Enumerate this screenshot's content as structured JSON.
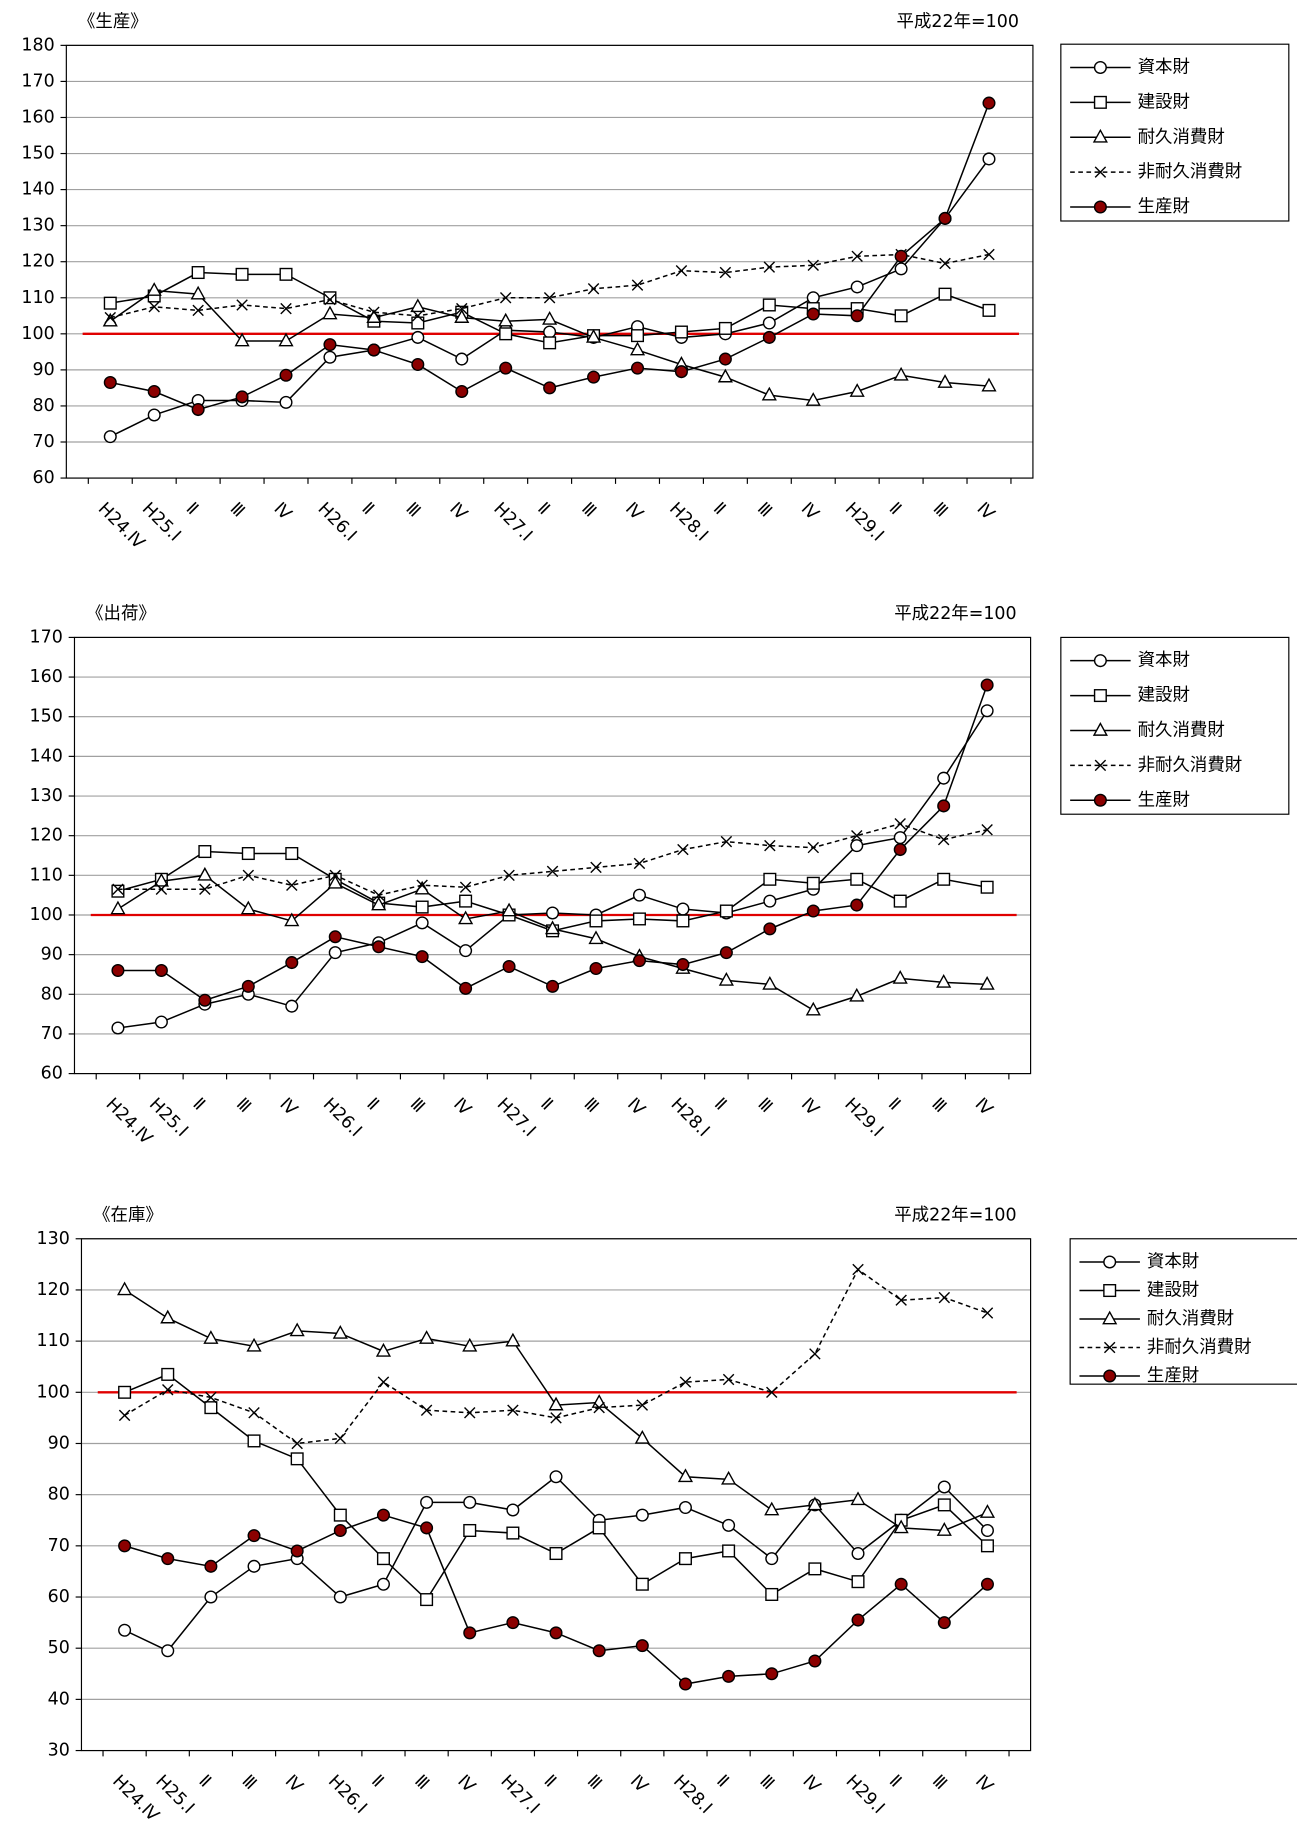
{
  "chart_data": [
    {
      "type": "line",
      "title": "《生産》",
      "subtitle": "平成22年=100",
      "categories": [
        "H24.Ⅳ",
        "H25.Ⅰ",
        "Ⅱ",
        "Ⅲ",
        "Ⅳ",
        "H26.Ⅰ",
        "Ⅱ",
        "Ⅲ",
        "Ⅳ",
        "H27.Ⅰ",
        "Ⅱ",
        "Ⅲ",
        "Ⅳ",
        "H28.Ⅰ",
        "Ⅱ",
        "Ⅲ",
        "Ⅳ",
        "H29.Ⅰ",
        "Ⅱ",
        "Ⅲ",
        "Ⅳ"
      ],
      "ylim": [
        60,
        180
      ],
      "yticks": [
        60,
        70,
        80,
        90,
        100,
        110,
        120,
        130,
        140,
        150,
        160,
        170,
        180
      ],
      "grid": true,
      "reference_line": 100,
      "reference_color": "#e00000",
      "series": [
        {
          "name": "資本財",
          "marker": "circle",
          "color": "#000000",
          "fill": "#ffffff",
          "dashed": false,
          "values": [
            71.5,
            77.5,
            81.5,
            81.5,
            81,
            93.5,
            95.5,
            99,
            93,
            101,
            100.5,
            99,
            102,
            99,
            100,
            103,
            110,
            113,
            118,
            132,
            148.5
          ]
        },
        {
          "name": "建設財",
          "marker": "square",
          "color": "#000000",
          "fill": "#ffffff",
          "dashed": false,
          "values": [
            108.5,
            110.5,
            117,
            116.5,
            116.5,
            110,
            103.5,
            103,
            106,
            100,
            97.5,
            99.5,
            99.5,
            100.5,
            101.5,
            108,
            107,
            107,
            105,
            111,
            106.5
          ]
        },
        {
          "name": "耐久消費財",
          "marker": "triangle",
          "color": "#000000",
          "fill": "#ffffff",
          "dashed": false,
          "values": [
            103.5,
            112,
            111,
            98,
            98,
            105.5,
            104.5,
            107.5,
            104.5,
            103.5,
            104,
            99,
            95.5,
            91.5,
            88,
            83,
            81.5,
            84,
            88.5,
            86.5,
            85.5
          ]
        },
        {
          "name": "非耐久消費財",
          "marker": "x",
          "color": "#000000",
          "fill": "#ffffff",
          "dashed": true,
          "values": [
            104.5,
            107.5,
            106.5,
            108,
            107,
            109.5,
            106,
            105,
            107,
            110,
            110,
            112.5,
            113.5,
            117.5,
            117,
            118.5,
            119,
            121.5,
            122,
            119.5,
            122
          ]
        },
        {
          "name": "生産財",
          "marker": "circle",
          "color": "#000000",
          "fill": "#8b0000",
          "dashed": false,
          "values": [
            86.5,
            84,
            79,
            82.5,
            88.5,
            97,
            95.5,
            91.5,
            84,
            90.5,
            85,
            88,
            90.5,
            89.5,
            93,
            99,
            105.5,
            105,
            121.5,
            132,
            164
          ]
        }
      ]
    },
    {
      "type": "line",
      "title": "《出荷》",
      "subtitle": "平成22年=100",
      "categories": [
        "H24.Ⅳ",
        "H25.Ⅰ",
        "Ⅱ",
        "Ⅲ",
        "Ⅳ",
        "H26.Ⅰ",
        "Ⅱ",
        "Ⅲ",
        "Ⅳ",
        "H27.Ⅰ",
        "Ⅱ",
        "Ⅲ",
        "Ⅳ",
        "H28.Ⅰ",
        "Ⅱ",
        "Ⅲ",
        "Ⅳ",
        "H29.Ⅰ",
        "Ⅱ",
        "Ⅲ",
        "Ⅳ"
      ],
      "ylim": [
        60,
        170
      ],
      "yticks": [
        60,
        70,
        80,
        90,
        100,
        110,
        120,
        130,
        140,
        150,
        160,
        170
      ],
      "grid": true,
      "reference_line": 100,
      "reference_color": "#e00000",
      "series": [
        {
          "name": "資本財",
          "marker": "circle",
          "color": "#000000",
          "fill": "#ffffff",
          "dashed": false,
          "values": [
            71.5,
            73,
            77.5,
            80,
            77,
            90.5,
            93,
            98,
            91,
            100,
            100.5,
            100,
            105,
            101.5,
            100.5,
            103.5,
            106.5,
            117.5,
            119.5,
            134.5,
            151.5
          ]
        },
        {
          "name": "建設財",
          "marker": "square",
          "color": "#000000",
          "fill": "#ffffff",
          "dashed": false,
          "values": [
            106,
            109,
            116,
            115.5,
            115.5,
            109,
            103,
            102,
            103.5,
            100,
            96,
            98.5,
            99,
            98.5,
            101,
            109,
            108,
            109,
            103.5,
            109,
            107
          ]
        },
        {
          "name": "耐久消費財",
          "marker": "triangle",
          "color": "#000000",
          "fill": "#ffffff",
          "dashed": false,
          "values": [
            101.5,
            108.5,
            110,
            101.5,
            98.5,
            108,
            102.5,
            106.5,
            99,
            101,
            96.5,
            94,
            89.5,
            86.5,
            83.5,
            82.5,
            76,
            79.5,
            84,
            83,
            82.5
          ]
        },
        {
          "name": "非耐久消費財",
          "marker": "x",
          "color": "#000000",
          "fill": "#ffffff",
          "dashed": true,
          "values": [
            106.5,
            106.5,
            106.5,
            110,
            107.5,
            110,
            105,
            107.5,
            107,
            110,
            111,
            112,
            113,
            116.5,
            118.5,
            117.5,
            117,
            120,
            123,
            119,
            121.5
          ]
        },
        {
          "name": "生産財",
          "marker": "circle",
          "color": "#000000",
          "fill": "#8b0000",
          "dashed": false,
          "values": [
            86,
            86,
            78.5,
            82,
            88,
            94.5,
            92,
            89.5,
            81.5,
            87,
            82,
            86.5,
            88.5,
            87.5,
            90.5,
            96.5,
            101,
            102.5,
            116.5,
            127.5,
            158
          ]
        }
      ]
    },
    {
      "type": "line",
      "title": "《在庫》",
      "subtitle": "平成22年=100",
      "categories": [
        "H24.Ⅳ",
        "H25.Ⅰ",
        "Ⅱ",
        "Ⅲ",
        "Ⅳ",
        "H26.Ⅰ",
        "Ⅱ",
        "Ⅲ",
        "Ⅳ",
        "H27.Ⅰ",
        "Ⅱ",
        "Ⅲ",
        "Ⅳ",
        "H28.Ⅰ",
        "Ⅱ",
        "Ⅲ",
        "Ⅳ",
        "H29.Ⅰ",
        "Ⅱ",
        "Ⅲ",
        "Ⅳ"
      ],
      "ylim": [
        30,
        130
      ],
      "yticks": [
        30,
        40,
        50,
        60,
        70,
        80,
        90,
        100,
        110,
        120,
        130
      ],
      "grid": true,
      "reference_line": 100,
      "reference_color": "#e00000",
      "series": [
        {
          "name": "資本財",
          "marker": "circle",
          "color": "#000000",
          "fill": "#ffffff",
          "dashed": false,
          "values": [
            53.5,
            49.5,
            60,
            66,
            67.5,
            60,
            62.5,
            78.5,
            78.5,
            77,
            83.5,
            75,
            76,
            77.5,
            74,
            67.5,
            78,
            68.5,
            75,
            81.5,
            73
          ]
        },
        {
          "name": "建設財",
          "marker": "square",
          "color": "#000000",
          "fill": "#ffffff",
          "dashed": false,
          "values": [
            100,
            103.5,
            97,
            90.5,
            87,
            76,
            67.5,
            59.5,
            73,
            72.5,
            68.5,
            73.5,
            62.5,
            67.5,
            69,
            60.5,
            65.5,
            63,
            75,
            78,
            70
          ]
        },
        {
          "name": "耐久消費財",
          "marker": "triangle",
          "color": "#000000",
          "fill": "#ffffff",
          "dashed": false,
          "values": [
            120,
            114.5,
            110.5,
            109,
            112,
            111.5,
            108,
            110.5,
            109,
            110,
            97.5,
            98,
            91,
            83.5,
            83,
            77,
            78,
            79,
            73.5,
            73,
            76.5
          ]
        },
        {
          "name": "非耐久消費財",
          "marker": "x",
          "color": "#000000",
          "fill": "#ffffff",
          "dashed": true,
          "values": [
            95.5,
            100.5,
            99,
            96,
            90,
            91,
            102,
            96.5,
            96,
            96.5,
            95,
            97,
            97.5,
            102,
            102.5,
            100,
            107.5,
            124,
            118,
            118.5,
            115.5
          ]
        },
        {
          "name": "生産財",
          "marker": "circle",
          "color": "#000000",
          "fill": "#8b0000",
          "dashed": false,
          "values": [
            70,
            67.5,
            66,
            72,
            69,
            73,
            76,
            73.5,
            53,
            55,
            53,
            49.5,
            50.5,
            43,
            44.5,
            45,
            47.5,
            55.5,
            62.5,
            55,
            62.5
          ]
        }
      ]
    }
  ]
}
